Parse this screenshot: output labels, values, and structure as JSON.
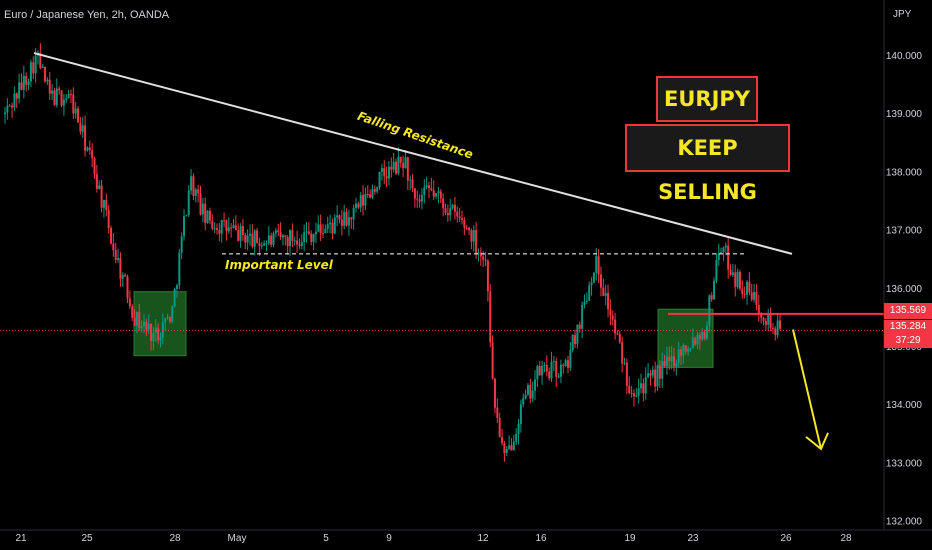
{
  "header": {
    "symbol_line": "Euro / Japanese Yen, 2h, OANDA",
    "currency": "JPY"
  },
  "badges": {
    "line1": "EURJPY",
    "line2": "KEEP SELLING"
  },
  "annotations": {
    "resistance": "Falling Resistance",
    "level": "Important Level"
  },
  "colors": {
    "background": "#000000",
    "up": "#089981",
    "down": "#f23645",
    "text": "#d1d4dc",
    "highlight": "#f5e626",
    "zone": "#1b5e20"
  },
  "price_tags": {
    "level": "135.569",
    "last": "135.284",
    "countdown": "37:29"
  },
  "chart_data": {
    "type": "candlestick",
    "title": "Euro / Japanese Yen, 2h, OANDA",
    "y_axis": {
      "label": "JPY",
      "min": 132.0,
      "max": 140.5,
      "ticks": [
        "140.000",
        "139.000",
        "138.000",
        "137.000",
        "136.000",
        "135.000",
        "134.000",
        "133.000",
        "132.000"
      ]
    },
    "x_ticks": [
      "21",
      "25",
      "28",
      "May",
      "5",
      "9",
      "12",
      "16",
      "19",
      "23",
      "26",
      "28"
    ],
    "price_path": [
      {
        "t": "21",
        "price": 139.0
      },
      {
        "t": "21",
        "price": 139.6
      },
      {
        "t": "21",
        "price": 140.0
      },
      {
        "t": "21",
        "price": 139.3
      },
      {
        "t": "25",
        "price": 139.3
      },
      {
        "t": "25",
        "price": 138.0
      },
      {
        "t": "25",
        "price": 136.8
      },
      {
        "t": "28",
        "price": 135.5
      },
      {
        "t": "28",
        "price": 135.2
      },
      {
        "t": "28",
        "price": 135.6
      },
      {
        "t": "28",
        "price": 137.9
      },
      {
        "t": "28",
        "price": 137.2
      },
      {
        "t": "May",
        "price": 137.0
      },
      {
        "t": "May",
        "price": 136.8
      },
      {
        "t": "5",
        "price": 136.9
      },
      {
        "t": "5",
        "price": 137.1
      },
      {
        "t": "5",
        "price": 137.2
      },
      {
        "t": "9",
        "price": 137.9
      },
      {
        "t": "9",
        "price": 138.2
      },
      {
        "t": "9",
        "price": 137.4
      },
      {
        "t": "9",
        "price": 137.7
      },
      {
        "t": "12",
        "price": 137.0
      },
      {
        "t": "12",
        "price": 136.4
      },
      {
        "t": "12",
        "price": 134.2
      },
      {
        "t": "12",
        "price": 133.0
      },
      {
        "t": "16",
        "price": 133.9
      },
      {
        "t": "16",
        "price": 134.6
      },
      {
        "t": "16",
        "price": 134.6
      },
      {
        "t": "16",
        "price": 135.8
      },
      {
        "t": "16",
        "price": 136.5
      },
      {
        "t": "19",
        "price": 135.6
      },
      {
        "t": "19",
        "price": 134.3
      },
      {
        "t": "19",
        "price": 134.4
      },
      {
        "t": "23",
        "price": 135.1
      },
      {
        "t": "23",
        "price": 135.3
      },
      {
        "t": "23",
        "price": 136.8
      },
      {
        "t": "23",
        "price": 136.2
      },
      {
        "t": "23",
        "price": 135.7
      },
      {
        "t": "26",
        "price": 135.284
      }
    ],
    "lines": [
      {
        "name": "Falling Resistance",
        "from": {
          "t": "21",
          "price": 140.05
        },
        "to": {
          "t": "26",
          "price": 136.6
        }
      },
      {
        "name": "Important Level",
        "price": 136.6,
        "style": "dashed"
      },
      {
        "name": "level",
        "price": 135.569
      },
      {
        "name": "last",
        "price": 135.284,
        "style": "dotted"
      }
    ],
    "zones": [
      {
        "price_range": [
          134.85,
          135.95
        ]
      },
      {
        "price_range": [
          134.65,
          135.65
        ]
      }
    ],
    "arrow": {
      "direction": "down",
      "from_price": 135.3,
      "to_price": 133.25
    },
    "grid": false
  }
}
